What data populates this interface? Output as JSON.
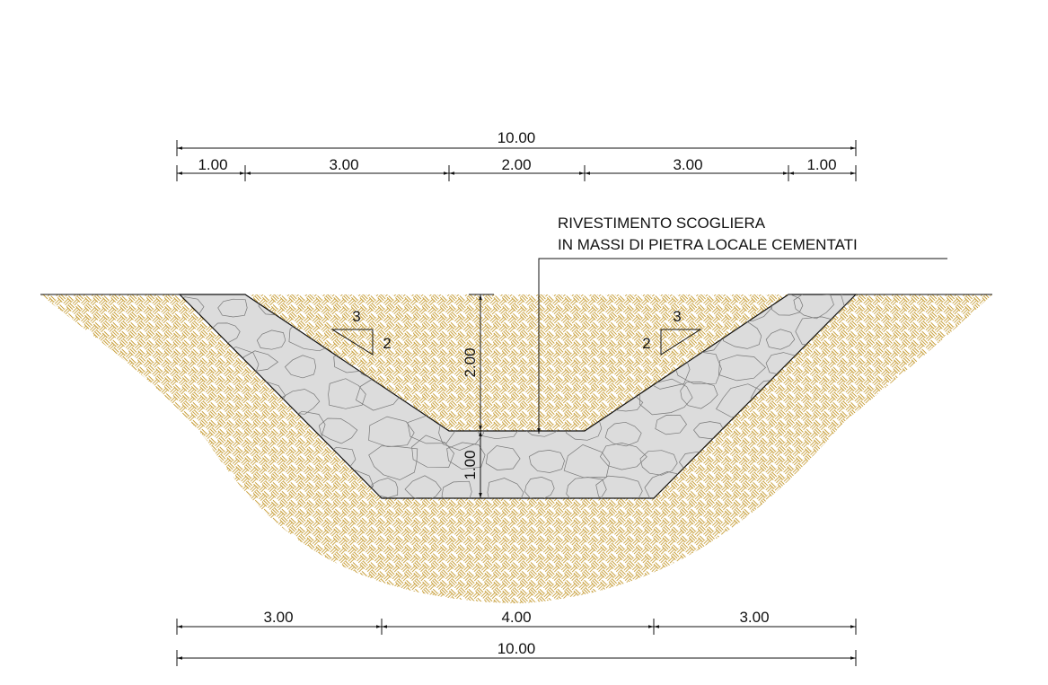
{
  "top_dimensions": {
    "total": "10.00",
    "segments": [
      "1.00",
      "3.00",
      "2.00",
      "3.00",
      "1.00"
    ]
  },
  "bottom_dimensions": {
    "segments": [
      "3.00",
      "4.00",
      "3.00"
    ],
    "total": "10.00"
  },
  "vertical_dimensions": [
    "2.00",
    "1.00"
  ],
  "annotation": {
    "lines": [
      "RIVESTIMENTO SCOGLIERA",
      "IN MASSI DI PIETRA LOCALE CEMENTATI"
    ]
  },
  "slopes": [
    {
      "run": "3",
      "rise": "2"
    },
    {
      "run": "3",
      "rise": "2"
    }
  ]
}
